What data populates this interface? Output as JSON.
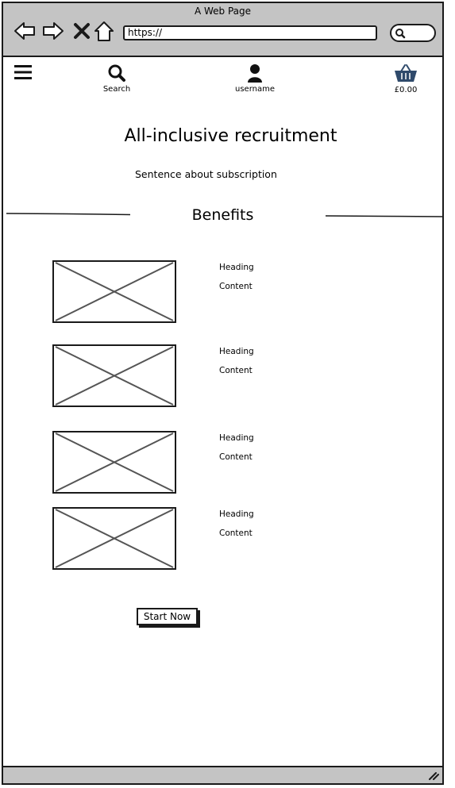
{
  "browser": {
    "window_title": "A Web Page",
    "url": "https://"
  },
  "header": {
    "search_label": "Search",
    "username_label": "username",
    "basket_total": "£0.00"
  },
  "main": {
    "title": "All-inclusive recruitment",
    "subtitle": "Sentence about subscription",
    "benefits_title": "Benefits",
    "benefits": [
      {
        "heading": "Heading",
        "content": "Content"
      },
      {
        "heading": "Heading",
        "content": "Content"
      },
      {
        "heading": "Heading",
        "content": "Content"
      },
      {
        "heading": "Heading",
        "content": "Content"
      }
    ],
    "cta_label": "Start Now"
  },
  "icons": {
    "back": "back-arrow-icon",
    "forward": "forward-arrow-icon",
    "stop": "close-icon",
    "home": "home-icon",
    "menu": "hamburger-menu-icon",
    "search": "search-icon",
    "user": "user-icon",
    "basket": "basket-icon",
    "resize": "resize-grip-icon"
  },
  "colors": {
    "chrome": "#c4c4c4",
    "basket": "#2f4a6b",
    "placeholder_stroke": "#555555"
  }
}
